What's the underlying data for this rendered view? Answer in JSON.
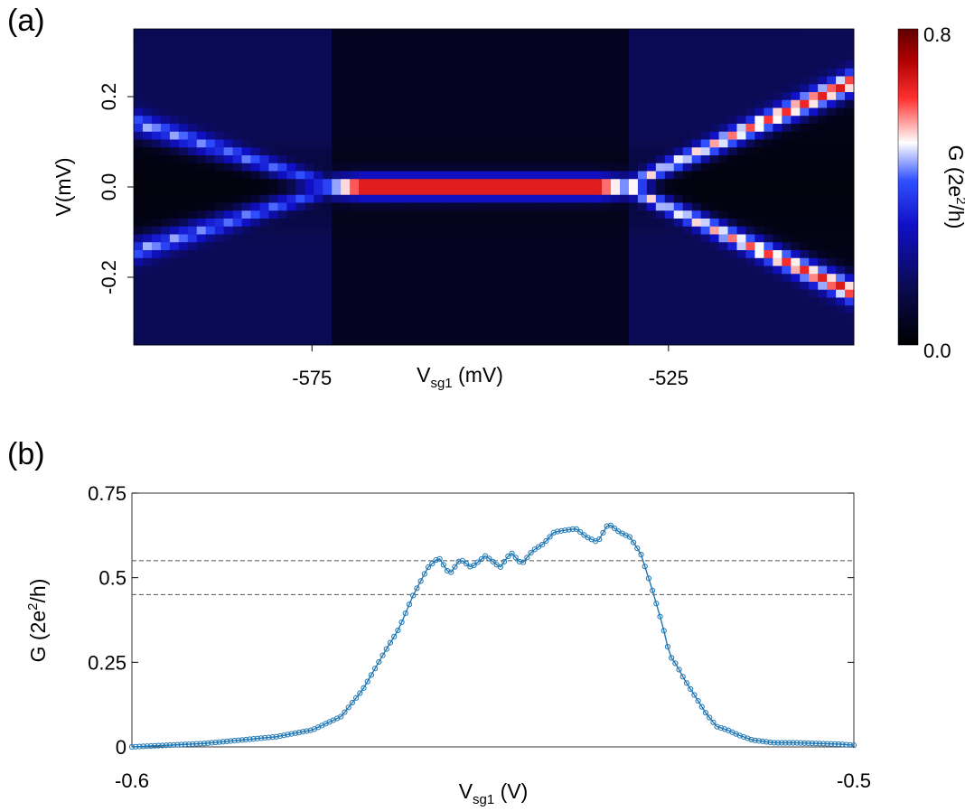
{
  "panels": {
    "a_label": "(a)",
    "b_label": "(b)"
  },
  "colors": {
    "curve": "#1f77b4",
    "dashed": "#555555",
    "colormap": [
      "#000000",
      "#0a0a50",
      "#1010c8",
      "#2a3cff",
      "#ffffff",
      "#ff3030",
      "#b00000",
      "#600000"
    ]
  },
  "chart_data": [
    {
      "type": "heatmap",
      "panel": "(a)",
      "xlabel_main": "V",
      "xlabel_sub": "sg1",
      "xlabel_unit": " (mV)",
      "ylabel": "V(mV)",
      "xlim": [
        -600,
        -499
      ],
      "ylim": [
        -0.35,
        0.35
      ],
      "xticks": [
        -575,
        -525
      ],
      "xtick_labels": [
        "-575",
        "-525"
      ],
      "yticks": [
        -0.2,
        0.0,
        0.2
      ],
      "ytick_labels": [
        "-0.2",
        "0.0",
        "0.2"
      ],
      "colorbar": {
        "label_prefix": "G (2e",
        "label_sup": "2",
        "label_suffix": "/h)",
        "range": [
          0.0,
          0.8
        ],
        "tick_labels": [
          "0.0",
          "0.8"
        ]
      },
      "features": {
        "zero_bias_plateau_x": [
          -572,
          -531
        ],
        "zero_bias_plateau_peak_G": 0.65,
        "split_branch_slope_mV_per_mV": 0.0045,
        "background_G": 0.15
      }
    },
    {
      "type": "line",
      "panel": "(b)",
      "xlabel_main": "V",
      "xlabel_sub": "sg1",
      "xlabel_unit": " (V)",
      "ylabel_prefix": "G (2e",
      "ylabel_sup": "2",
      "ylabel_suffix": "/h)",
      "xlim": [
        -0.6,
        -0.5
      ],
      "ylim": [
        0,
        0.75
      ],
      "xtick_labels": [
        "-0.6",
        "-0.5"
      ],
      "xticks": [
        -0.6,
        -0.5
      ],
      "yticks": [
        0,
        0.25,
        0.5,
        0.75
      ],
      "ytick_labels": [
        "0",
        "0.25",
        "0.5",
        "0.75"
      ],
      "hlines": [
        0.45,
        0.55
      ],
      "series": [
        {
          "x": [
            -0.6,
            -0.595,
            -0.59,
            -0.585,
            -0.58,
            -0.575,
            -0.571,
            -0.568,
            -0.565,
            -0.563,
            -0.561,
            -0.559,
            -0.5575,
            -0.556,
            -0.5545,
            -0.553,
            -0.551,
            -0.549,
            -0.5475,
            -0.546,
            -0.5445,
            -0.543,
            -0.5415,
            -0.54,
            -0.5385,
            -0.537,
            -0.5355,
            -0.534,
            -0.5325,
            -0.531,
            -0.5295,
            -0.528,
            -0.5265,
            -0.5255,
            -0.5245,
            -0.5235,
            -0.522,
            -0.5205,
            -0.519,
            -0.5175,
            -0.516,
            -0.514,
            -0.511,
            -0.508,
            -0.505,
            -0.502,
            -0.5
          ],
          "y": [
            0.0,
            0.005,
            0.01,
            0.02,
            0.03,
            0.05,
            0.09,
            0.17,
            0.28,
            0.35,
            0.45,
            0.53,
            0.56,
            0.51,
            0.555,
            0.53,
            0.565,
            0.53,
            0.575,
            0.54,
            0.58,
            0.6,
            0.635,
            0.64,
            0.645,
            0.62,
            0.605,
            0.66,
            0.635,
            0.62,
            0.57,
            0.47,
            0.36,
            0.27,
            0.24,
            0.2,
            0.15,
            0.1,
            0.06,
            0.05,
            0.035,
            0.02,
            0.012,
            0.012,
            0.01,
            0.008,
            0.005
          ]
        }
      ]
    }
  ]
}
